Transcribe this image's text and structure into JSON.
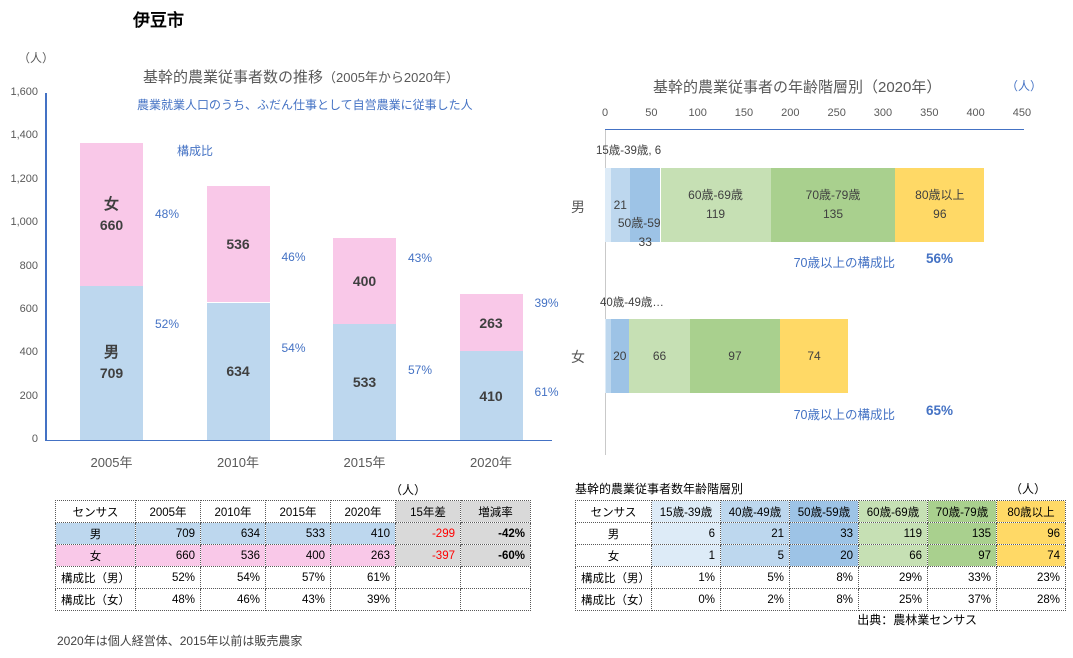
{
  "page": {
    "title": "伊豆市",
    "note": "2020年は個人経営体、2015年以前は販売農家",
    "source": "出典：農林業センサス"
  },
  "colors": {
    "male_blue": "#BDD7EE",
    "female_pink": "#F9C8E8",
    "accent_blue": "#4472C4",
    "title_gray": "#595959",
    "gray_cell": "#D9D9D9",
    "negative_red": "#FF0000",
    "age_colors": [
      "#DDEBF7",
      "#BDD7EE",
      "#9DC3E6",
      "#C6E0B4",
      "#A9D08E",
      "#FFD966"
    ]
  },
  "chart_data": [
    {
      "type": "bar",
      "name": "trend-stacked-column",
      "title": "基幹的農業従事者数の推移",
      "title_suffix": "（2005年から2020年）",
      "subtitle": "農業就業人口のうち、ふだん仕事として自営農業に従事した人",
      "unit_label": "（人）",
      "legend_note": "構成比",
      "categories": [
        "2005年",
        "2010年",
        "2015年",
        "2020年"
      ],
      "series": [
        {
          "name": "男",
          "values": [
            709,
            634,
            533,
            410
          ],
          "pct": [
            "52%",
            "54%",
            "57%",
            "61%"
          ]
        },
        {
          "name": "女",
          "values": [
            660,
            536,
            400,
            263
          ],
          "pct": [
            "48%",
            "46%",
            "43%",
            "39%"
          ]
        }
      ],
      "ylim": [
        0,
        1600
      ],
      "yticks": [
        "1,600",
        "1,400",
        "1,200",
        "1,000",
        "800",
        "600",
        "400",
        "200",
        "0"
      ]
    },
    {
      "type": "bar",
      "name": "age-stacked-horizontal-bar",
      "title": "基幹的農業従事者の年齢階層別（2020年）",
      "unit_label": "（人）",
      "xlim": [
        0,
        450
      ],
      "xticks": [
        "0",
        "50",
        "100",
        "150",
        "200",
        "250",
        "300",
        "350",
        "400",
        "450"
      ],
      "age_groups": [
        "15歳-39歳",
        "40歳-49歳",
        "50歳-59歳",
        "60歳-69歳",
        "70歳-79歳",
        "80歳以上"
      ],
      "rows": [
        {
          "name": "男",
          "values": [
            6,
            21,
            33,
            119,
            135,
            96
          ],
          "callout": "15歳-39歳, 6",
          "ratio_label": "70歳以上の構成比",
          "ratio_value": "56%"
        },
        {
          "name": "女",
          "values": [
            1,
            5,
            20,
            66,
            97,
            74
          ],
          "callout": "40歳-49歳…",
          "ratio_label": "70歳以上の構成比",
          "ratio_value": "65%"
        }
      ]
    }
  ],
  "left_table": {
    "unit_label": "（人）",
    "headers": [
      "センサス",
      "2005年",
      "2010年",
      "2015年",
      "2020年",
      "15年差",
      "増減率"
    ],
    "rows": [
      {
        "label": "男",
        "values": [
          "709",
          "634",
          "533",
          "410"
        ],
        "diff": "-299",
        "rate": "-42%"
      },
      {
        "label": "女",
        "values": [
          "660",
          "536",
          "400",
          "263"
        ],
        "diff": "-397",
        "rate": "-60%"
      },
      {
        "label": "構成比（男）",
        "values": [
          "52%",
          "54%",
          "57%",
          "61%"
        ]
      },
      {
        "label": "構成比（女）",
        "values": [
          "48%",
          "46%",
          "43%",
          "39%"
        ]
      }
    ]
  },
  "right_table": {
    "title": "基幹的農業従事者数年齢階層別",
    "unit_label": "（人）",
    "headers": [
      "センサス",
      "15歳-39歳",
      "40歳-49歳",
      "50歳-59歳",
      "60歳-69歳",
      "70歳-79歳",
      "80歳以上"
    ],
    "rows": [
      {
        "label": "男",
        "values": [
          "6",
          "21",
          "33",
          "119",
          "135",
          "96"
        ]
      },
      {
        "label": "女",
        "values": [
          "1",
          "5",
          "20",
          "66",
          "97",
          "74"
        ]
      },
      {
        "label": "構成比（男）",
        "values": [
          "1%",
          "5%",
          "8%",
          "29%",
          "33%",
          "23%"
        ]
      },
      {
        "label": "構成比（女）",
        "values": [
          "0%",
          "2%",
          "8%",
          "25%",
          "37%",
          "28%"
        ]
      }
    ]
  }
}
